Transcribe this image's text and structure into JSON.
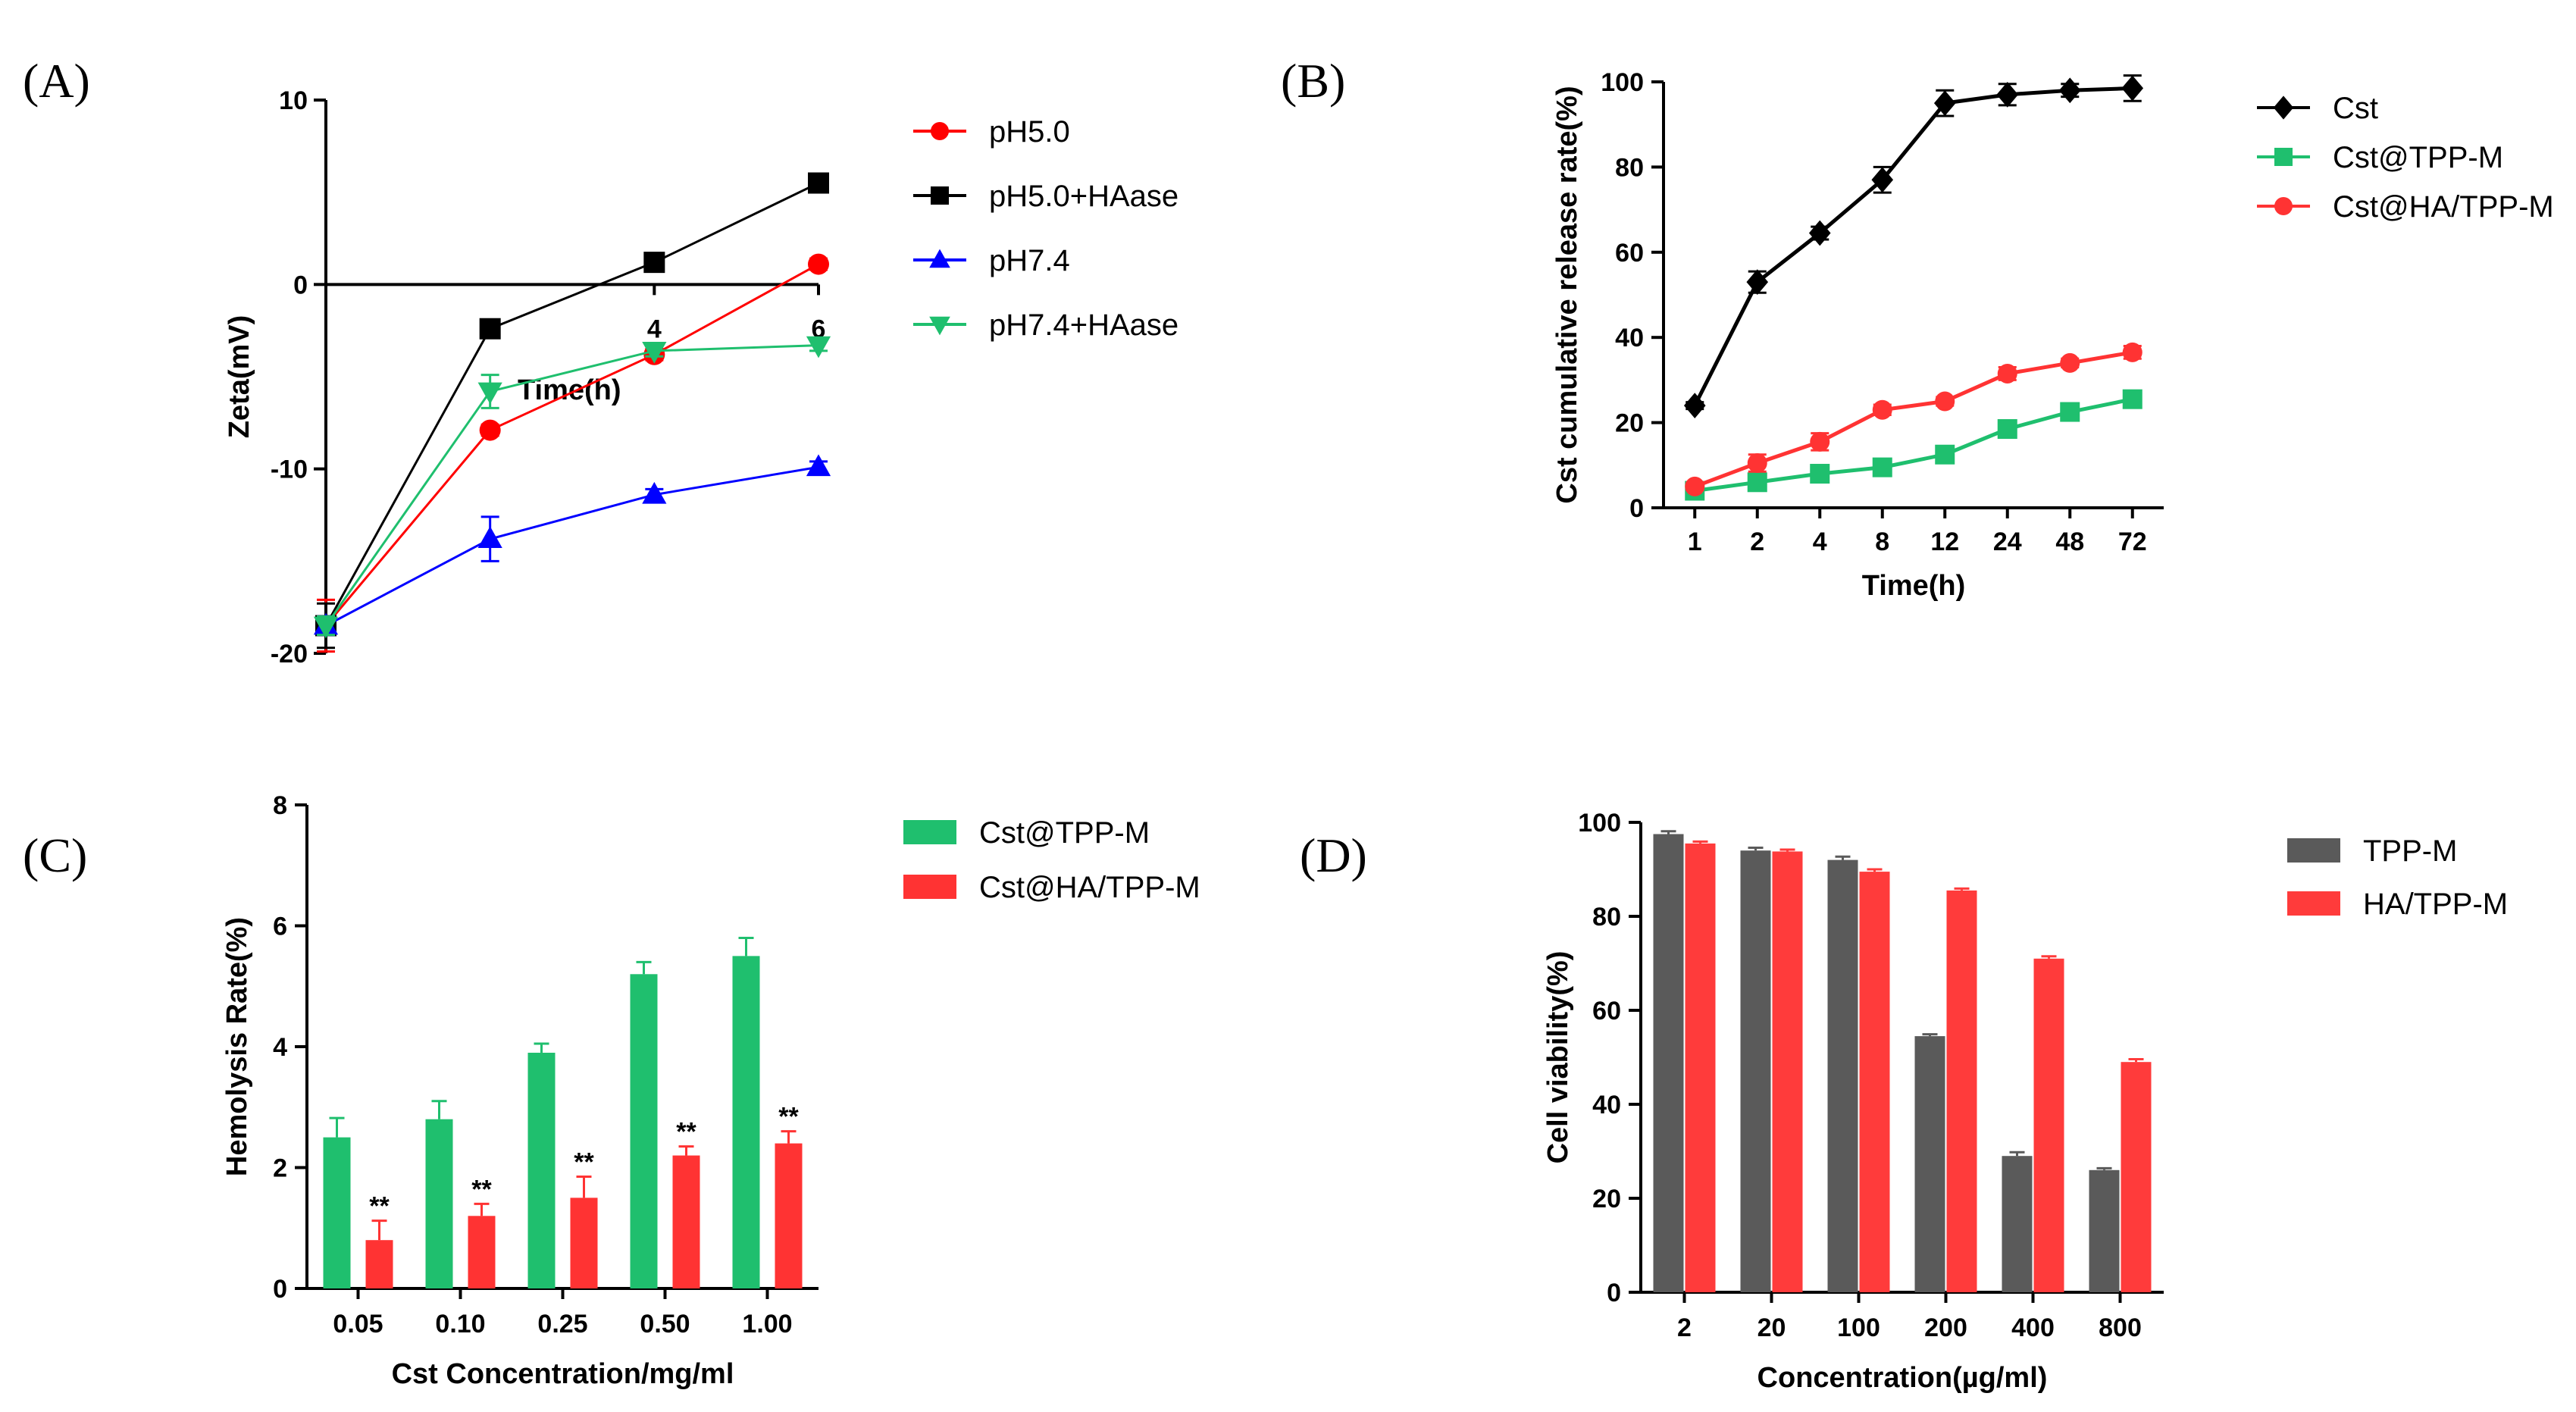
{
  "panels": {
    "A": {
      "label": "(A)"
    },
    "B": {
      "label": "(B)"
    },
    "C": {
      "label": "(C)"
    },
    "D": {
      "label": "(D)"
    }
  },
  "chart_data": [
    {
      "panel": "A",
      "type": "line",
      "title": "",
      "xlabel": "Time(h)",
      "ylabel": "Zeta(mV)",
      "x": [
        0,
        2,
        4,
        6
      ],
      "x_tick_labels": [
        "4",
        "6"
      ],
      "xlim": [
        0,
        6
      ],
      "ylim": [
        -20,
        10
      ],
      "y_ticks": [
        10,
        0,
        -10,
        -20
      ],
      "y_tick_labels": [
        "10",
        "0",
        "-10",
        "-20"
      ],
      "series": [
        {
          "name": "pH5.0",
          "color": "#ff0000",
          "marker": "circle",
          "values": [
            -18.5,
            -7.9,
            -3.8,
            1.1
          ],
          "errors": [
            1.4,
            0.3,
            0.3,
            0.3
          ]
        },
        {
          "name": "pH5.0+HAase",
          "color": "#000000",
          "marker": "square",
          "values": [
            -18.5,
            -2.4,
            1.2,
            5.5
          ],
          "errors": [
            1.2,
            0.4,
            0.3,
            0.3
          ]
        },
        {
          "name": "pH7.4",
          "color": "#0000ff",
          "marker": "triangle-up",
          "values": [
            -18.5,
            -13.8,
            -11.4,
            -9.9
          ],
          "errors": [
            0.5,
            1.2,
            0.3,
            0.3
          ]
        },
        {
          "name": "pH7.4+HAase",
          "color": "#1fbf6e",
          "marker": "triangle-down",
          "values": [
            -18.5,
            -5.8,
            -3.6,
            -3.3
          ],
          "errors": [
            0.5,
            0.9,
            0.3,
            0.3
          ]
        }
      ],
      "legend_position": "right"
    },
    {
      "panel": "B",
      "type": "line",
      "title": "",
      "xlabel": "Time(h)",
      "ylabel": "Cst cumulative release rate(%)",
      "categories": [
        "1",
        "2",
        "4",
        "8",
        "12",
        "24",
        "48",
        "72"
      ],
      "ylim": [
        0,
        100
      ],
      "y_ticks": [
        0,
        20,
        40,
        60,
        80,
        100
      ],
      "y_tick_labels": [
        "0",
        "20",
        "40",
        "60",
        "80",
        "100"
      ],
      "series": [
        {
          "name": "Cst",
          "color": "#000000",
          "marker": "diamond",
          "values": [
            24,
            53,
            64.5,
            77,
            95,
            97,
            98,
            98.5
          ],
          "errors": [
            0.8,
            2.5,
            1.5,
            3,
            3,
            2.5,
            1.5,
            3
          ]
        },
        {
          "name": "Cst@TPP-M",
          "color": "#1fbf6e",
          "marker": "square",
          "values": [
            4,
            6,
            8,
            9.5,
            12.5,
            18.5,
            22.5,
            25.5
          ],
          "errors": [
            0.8,
            1,
            2,
            1,
            1.5,
            1,
            2,
            2
          ]
        },
        {
          "name": "Cst@HA/TPP-M",
          "color": "#ff3333",
          "marker": "circle",
          "values": [
            5,
            10.5,
            15.5,
            23,
            25,
            31.5,
            34,
            36.5
          ],
          "errors": [
            0.8,
            2,
            2,
            1.2,
            1,
            1.5,
            1,
            1.5
          ]
        }
      ],
      "legend_position": "right"
    },
    {
      "panel": "C",
      "type": "bar",
      "title": "",
      "xlabel": "Cst Concentration/mg/ml",
      "ylabel": "Hemolysis Rate(%)",
      "categories": [
        "0.05",
        "0.10",
        "0.25",
        "0.50",
        "1.00"
      ],
      "ylim": [
        0,
        8
      ],
      "y_ticks": [
        0,
        2,
        4,
        6,
        8
      ],
      "y_tick_labels": [
        "0",
        "2",
        "4",
        "6",
        "8"
      ],
      "annotations": [
        "**",
        "**",
        "**",
        "**",
        "**"
      ],
      "series": [
        {
          "name": "Cst@TPP-M",
          "color": "#1fbf6e",
          "values": [
            2.5,
            2.8,
            3.9,
            5.2,
            5.5
          ],
          "errors": [
            0.32,
            0.3,
            0.15,
            0.2,
            0.3
          ]
        },
        {
          "name": "Cst@HA/TPP-M",
          "color": "#ff3333",
          "values": [
            0.8,
            1.2,
            1.5,
            2.2,
            2.4
          ],
          "errors": [
            0.32,
            0.2,
            0.35,
            0.15,
            0.2
          ]
        }
      ],
      "legend_position": "right"
    },
    {
      "panel": "D",
      "type": "bar",
      "title": "",
      "xlabel": "Concentration(µg/ml)",
      "ylabel": "Cell viability(%)",
      "categories": [
        "2",
        "20",
        "100",
        "200",
        "400",
        "800"
      ],
      "ylim": [
        0,
        100
      ],
      "y_ticks": [
        0,
        20,
        40,
        60,
        80,
        100
      ],
      "y_tick_labels": [
        "0",
        "20",
        "40",
        "60",
        "80",
        "100"
      ],
      "series": [
        {
          "name": "TPP-M",
          "color": "#5a5a5a",
          "values": [
            97.5,
            94,
            92,
            54.5,
            29,
            26
          ],
          "errors": [
            0.6,
            0.6,
            0.7,
            0.4,
            0.8,
            0.4
          ]
        },
        {
          "name": "HA/TPP-M",
          "color": "#ff3b3b",
          "values": [
            95.5,
            93.8,
            89.5,
            85.5,
            71,
            49
          ],
          "errors": [
            0.4,
            0.4,
            0.5,
            0.4,
            0.5,
            0.6
          ]
        }
      ],
      "legend_position": "right"
    }
  ]
}
